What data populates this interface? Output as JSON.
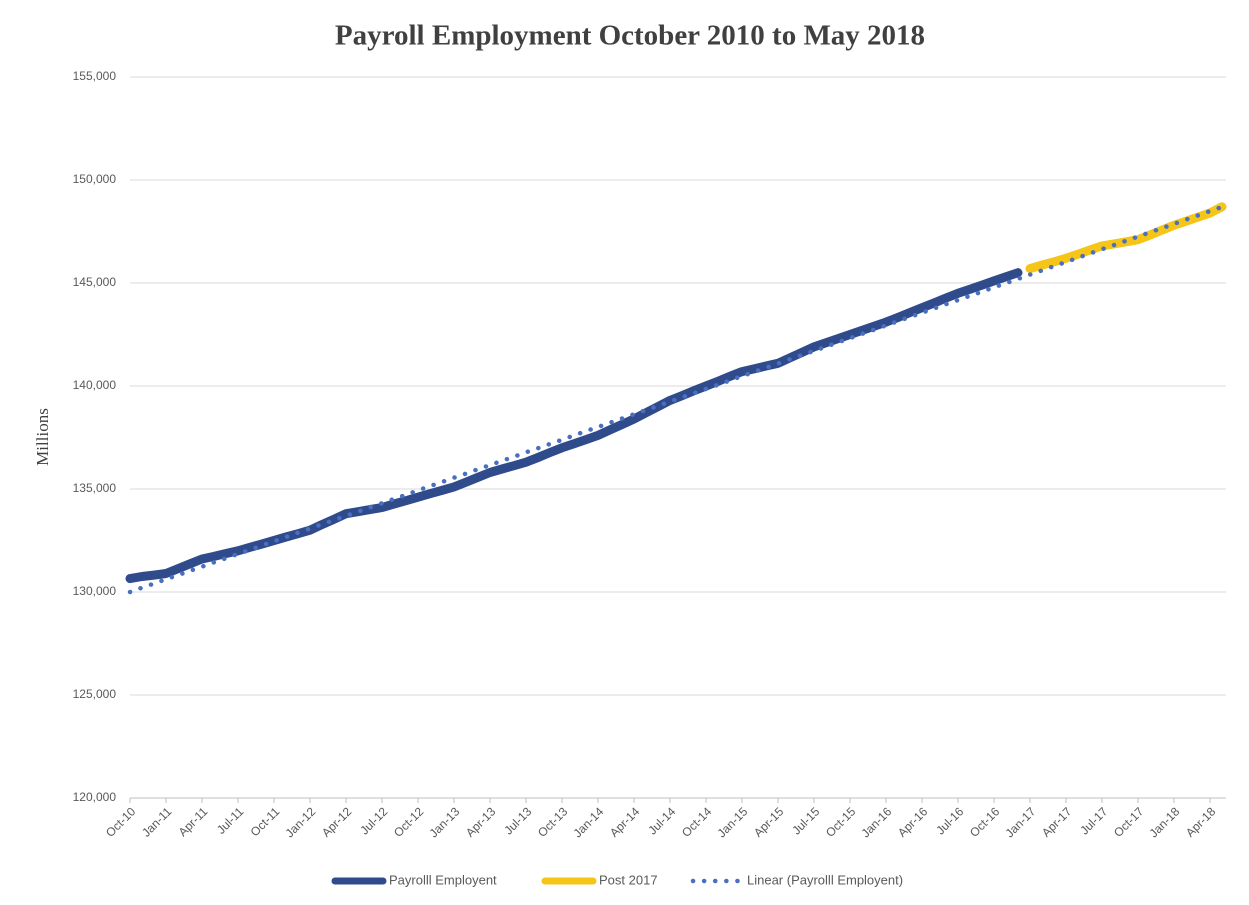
{
  "chart_data": {
    "type": "line",
    "title": "Payroll Employment  October 2010 to May 2018",
    "y_label": "Millions",
    "categories": [
      "Oct-10",
      null,
      null,
      "Jan-11",
      null,
      null,
      "Apr-11",
      null,
      null,
      "Jul-11",
      null,
      null,
      "Oct-11",
      null,
      null,
      "Jan-12",
      null,
      null,
      "Apr-12",
      null,
      null,
      "Jul-12",
      null,
      null,
      "Oct-12",
      null,
      null,
      "Jan-13",
      null,
      null,
      "Apr-13",
      null,
      null,
      "Jul-13",
      null,
      null,
      "Oct-13",
      null,
      null,
      "Jan-14",
      null,
      null,
      "Apr-14",
      null,
      null,
      "Jul-14",
      null,
      null,
      "Oct-14",
      null,
      null,
      "Jan-15",
      null,
      null,
      "Apr-15",
      null,
      null,
      "Jul-15",
      null,
      null,
      "Oct-15",
      null,
      null,
      "Jan-16",
      null,
      null,
      "Apr-16",
      null,
      null,
      "Jul-16",
      null,
      null,
      "Oct-16",
      null,
      null,
      "Jan-17",
      null,
      null,
      "Apr-17",
      null,
      null,
      "Jul-17",
      null,
      null,
      "Oct-17",
      null,
      null,
      "Jan-18",
      null,
      null,
      "Apr-18",
      null
    ],
    "series": [
      {
        "name": "Payrolll Employent",
        "color": "#2f4b8c",
        "dash": "solid",
        "values": [
          130650,
          130750,
          130820,
          130900,
          131130,
          131370,
          131600,
          131730,
          131870,
          132000,
          132170,
          132330,
          132500,
          132670,
          132830,
          133000,
          133270,
          133530,
          133800,
          133900,
          134000,
          134100,
          134270,
          134430,
          134600,
          134770,
          134930,
          135100,
          135330,
          135570,
          135800,
          135970,
          136130,
          136300,
          136530,
          136770,
          137000,
          137200,
          137400,
          137600,
          137870,
          138130,
          138400,
          138700,
          139000,
          139300,
          139530,
          139770,
          140000,
          140230,
          140470,
          140700,
          140830,
          140970,
          141100,
          141370,
          141630,
          141900,
          142100,
          142300,
          142500,
          142700,
          142900,
          143100,
          143330,
          143570,
          143800,
          144030,
          144270,
          144500,
          144700,
          144900,
          145100,
          145300,
          145500,
          null,
          null,
          null,
          null,
          null,
          null,
          null,
          null,
          null,
          null,
          null,
          null,
          null,
          null,
          null,
          null,
          null
        ]
      },
      {
        "name": "Post 2017",
        "color": "#f5c518",
        "dash": "solid",
        "values": [
          null,
          null,
          null,
          null,
          null,
          null,
          null,
          null,
          null,
          null,
          null,
          null,
          null,
          null,
          null,
          null,
          null,
          null,
          null,
          null,
          null,
          null,
          null,
          null,
          null,
          null,
          null,
          null,
          null,
          null,
          null,
          null,
          null,
          null,
          null,
          null,
          null,
          null,
          null,
          null,
          null,
          null,
          null,
          null,
          null,
          null,
          null,
          null,
          null,
          null,
          null,
          null,
          null,
          null,
          null,
          null,
          null,
          null,
          null,
          null,
          null,
          null,
          null,
          null,
          null,
          null,
          null,
          null,
          null,
          null,
          null,
          null,
          null,
          null,
          null,
          145700,
          145870,
          146030,
          146200,
          146400,
          146600,
          146800,
          146900,
          147000,
          147100,
          147330,
          147570,
          147800,
          148000,
          148200,
          148400,
          148700
        ]
      },
      {
        "name": "Linear (Payrolll Employent)",
        "color": "#4a6fc0",
        "dash": "dotted",
        "values": [
          130000,
          130210,
          130410,
          130620,
          130820,
          131030,
          131230,
          131440,
          131640,
          131850,
          132050,
          132260,
          132460,
          132670,
          132880,
          133080,
          133290,
          133490,
          133700,
          133900,
          134110,
          134310,
          134520,
          134720,
          134930,
          135140,
          135340,
          135550,
          135750,
          135960,
          136160,
          136370,
          136570,
          136780,
          136980,
          137190,
          137390,
          137600,
          137810,
          138010,
          138220,
          138420,
          138630,
          138830,
          139040,
          139240,
          139450,
          139650,
          139860,
          140060,
          140270,
          140480,
          140680,
          140890,
          141090,
          141300,
          141500,
          141710,
          141910,
          142120,
          142320,
          142530,
          142730,
          142940,
          143150,
          143350,
          143560,
          143760,
          143970,
          144170,
          144380,
          144580,
          144790,
          144990,
          145200,
          145410,
          145610,
          145820,
          146020,
          146230,
          146430,
          146640,
          146840,
          147050,
          147250,
          147460,
          147660,
          147870,
          148080,
          148280,
          148490,
          148690
        ]
      }
    ],
    "ylim": [
      120000,
      155000
    ],
    "yticks": [
      {
        "value": 120000,
        "label": "120,000"
      },
      {
        "value": 125000,
        "label": "125,000"
      },
      {
        "value": 130000,
        "label": "130,000"
      },
      {
        "value": 135000,
        "label": "135,000"
      },
      {
        "value": 140000,
        "label": "140,000"
      },
      {
        "value": 145000,
        "label": "145,000"
      },
      {
        "value": 150000,
        "label": "150,000"
      },
      {
        "value": 155000,
        "label": "155,000"
      }
    ],
    "grid": true,
    "legend": "bottom"
  }
}
